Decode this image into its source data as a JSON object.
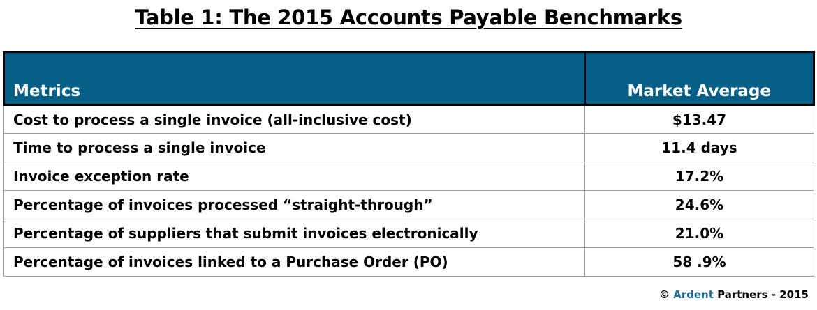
{
  "title": "Table 1: The 2015 Accounts Payable Benchmarks",
  "table": {
    "headers": {
      "metric": "Metrics",
      "value": "Market Average"
    },
    "rows": [
      {
        "metric": "Cost to process a single invoice (all-inclusive cost)",
        "value": "$13.47"
      },
      {
        "metric": "Time to process a single invoice",
        "value": "11.4 days"
      },
      {
        "metric": "Invoice exception rate",
        "value": "17.2%"
      },
      {
        "metric": "Percentage of invoices processed “straight-through”",
        "value": "24.6%"
      },
      {
        "metric": "Percentage of suppliers that submit invoices electronically",
        "value": "21.0%"
      },
      {
        "metric": "Percentage of invoices linked to a Purchase Order (PO)",
        "value": "58 .9%"
      }
    ]
  },
  "footer": {
    "copyright": "©",
    "brand": "Ardent",
    "rest": "Partners - 2015"
  },
  "colors": {
    "header_bg": "#065f86",
    "brand": "#1f6d96"
  }
}
